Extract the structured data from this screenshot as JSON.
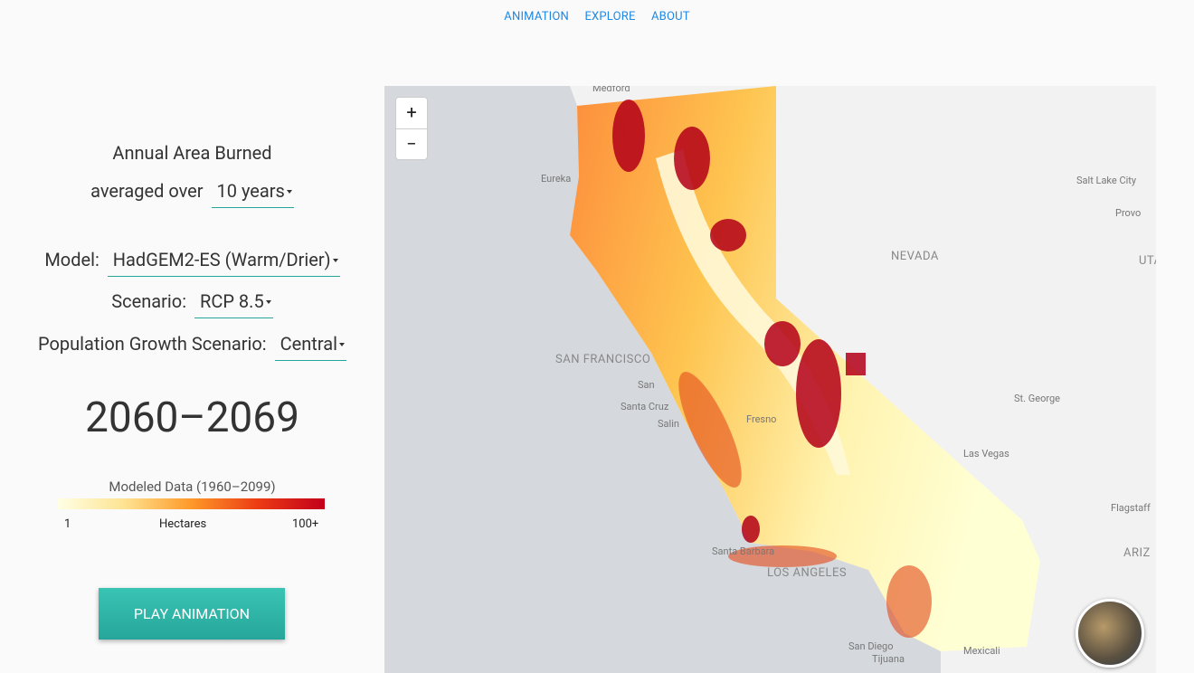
{
  "nav": [
    "ANIMATION",
    "EXPLORE",
    "ABOUT"
  ],
  "panel": {
    "title": "Annual Area Burned",
    "averaged_label": "averaged over",
    "period": "10 years",
    "model_label": "Model:",
    "model": "HadGEM2-ES (Warm/Drier)",
    "scenario_label": "Scenario:",
    "scenario": "RCP 8.5",
    "population_label": "Population Growth Scenario:",
    "population": "Central",
    "years": "2060–2069",
    "legend": {
      "title": "Modeled Data (1960–2099)",
      "min": "1",
      "unit": "Hectares",
      "max": "100+"
    },
    "button": "PLAY ANIMATION"
  },
  "map": {
    "zoom_in": "+",
    "zoom_out": "−",
    "labels": [
      "Medford",
      "Eureka",
      "Salt Lake City",
      "Provo",
      "NEVADA",
      "UTA",
      "SAN FRANCISCO",
      "San",
      "Santa Cruz",
      "Salin",
      "Fresno",
      "St. George",
      "Las Vegas",
      "Flagstaff",
      "ARIZ",
      "Santa Barbara",
      "LOS ANGELES",
      "San Diego",
      "Tijuana",
      "Mexicali"
    ]
  }
}
